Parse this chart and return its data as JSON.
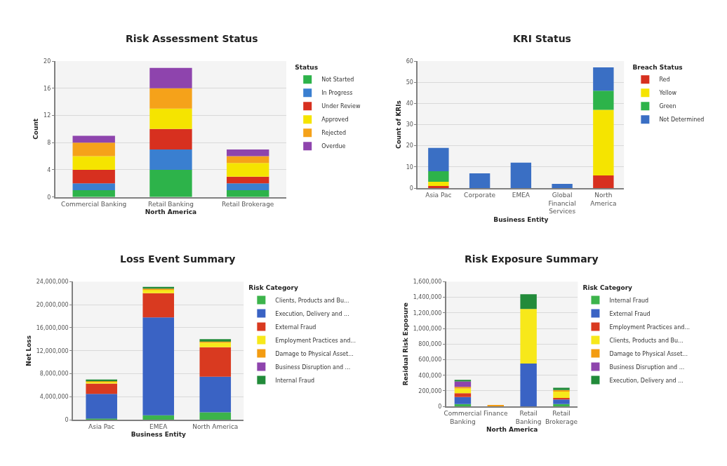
{
  "chart_data": [
    {
      "type": "bar",
      "stacked": true,
      "title": "Risk Assessment Status",
      "xlabel": "North America",
      "ylabel": "Count",
      "legend_title": "Status",
      "legend": "top right",
      "grid": "y",
      "categories": [
        "Commercial Banking",
        "Retail Banking",
        "Retail Brokerage"
      ],
      "ylim": [
        0,
        20
      ],
      "yticks": [
        0,
        4,
        8,
        12,
        16,
        20
      ],
      "series": [
        {
          "name": "Not Started",
          "color": "#2db34a",
          "values": [
            1,
            4,
            1
          ]
        },
        {
          "name": "In Progress",
          "color": "#3a7fd0",
          "values": [
            1,
            3,
            1
          ]
        },
        {
          "name": "Under Review",
          "color": "#d7301f",
          "values": [
            2,
            3,
            1
          ]
        },
        {
          "name": "Approved",
          "color": "#f5e400",
          "values": [
            2,
            3,
            2
          ]
        },
        {
          "name": "Rejected",
          "color": "#f5a21a",
          "values": [
            2,
            3,
            1
          ]
        },
        {
          "name": "Overdue",
          "color": "#8e44ad",
          "values": [
            1,
            3,
            1
          ]
        }
      ]
    },
    {
      "type": "bar",
      "stacked": true,
      "title": "KRI Status",
      "xlabel": "Business Entity",
      "ylabel": "Count of KRIs",
      "legend_title": "Breach Status",
      "legend": "top right",
      "grid": "y",
      "categories": [
        "Asia Pac",
        "Corporate",
        "EMEA",
        "Global Financial Services",
        "North America"
      ],
      "ylim": [
        0,
        60
      ],
      "yticks": [
        0,
        10,
        20,
        30,
        40,
        50,
        60
      ],
      "series": [
        {
          "name": "Red",
          "color": "#d7301f",
          "values": [
            1,
            0,
            0,
            0,
            6
          ]
        },
        {
          "name": "Yellow",
          "color": "#f5e400",
          "values": [
            2,
            0,
            0,
            0,
            31
          ]
        },
        {
          "name": "Green",
          "color": "#2db34a",
          "values": [
            5,
            0,
            0,
            0,
            9
          ]
        },
        {
          "name": "Not Determined",
          "color": "#3a6fc4",
          "values": [
            11,
            7,
            12,
            2,
            11
          ]
        }
      ]
    },
    {
      "type": "bar",
      "stacked": true,
      "title": "Loss Event Summary",
      "xlabel": "Business Entity",
      "ylabel": "Net Loss",
      "legend_title": "Risk Category",
      "legend": "top right",
      "grid": "y",
      "categories": [
        "Asia Pac",
        "EMEA",
        "North America"
      ],
      "ylim": [
        0,
        24000000
      ],
      "yticks": [
        {
          "value": 0,
          "label": "0"
        },
        {
          "value": 4000000,
          "label": "4,000,000"
        },
        {
          "value": 8000000,
          "label": "8,000,000"
        },
        {
          "value": 12000000,
          "label": "12,000,000"
        },
        {
          "value": 16000000,
          "label": "16,000,000"
        },
        {
          "value": 20000000,
          "label": "20,000,000"
        },
        {
          "value": 24000000,
          "label": "24,000,000"
        }
      ],
      "series": [
        {
          "name": "Clients, Products and Bu...",
          "color": "#3cb44b",
          "values": [
            200000,
            800000,
            1300000
          ]
        },
        {
          "name": "Execution, Delivery and ...",
          "color": "#3a63c4",
          "values": [
            4300000,
            17000000,
            6200000
          ]
        },
        {
          "name": "External Fraud",
          "color": "#d93a20",
          "values": [
            1800000,
            4200000,
            5100000
          ]
        },
        {
          "name": "Employment Practices and...",
          "color": "#f7e81a",
          "values": [
            300000,
            600000,
            800000
          ]
        },
        {
          "name": "Damage to Physical Asset...",
          "color": "#f39c12",
          "values": [
            100000,
            200000,
            200000
          ]
        },
        {
          "name": "Business Disruption and ...",
          "color": "#8e44ad",
          "values": [
            0,
            0,
            0
          ]
        },
        {
          "name": "Internal Fraud",
          "color": "#228b3a",
          "values": [
            300000,
            300000,
            400000
          ]
        }
      ]
    },
    {
      "type": "bar",
      "stacked": true,
      "title": "Risk Exposure Summary",
      "xlabel": "North America",
      "ylabel": "Residual Risk Exposure",
      "legend_title": "Risk Category",
      "legend": "top right",
      "grid": "y",
      "categories": [
        "Commercial Banking",
        "Finance",
        "Retail Banking",
        "Retail Brokerage"
      ],
      "ylim": [
        0,
        1600000
      ],
      "yticks": [
        {
          "value": 0,
          "label": "0"
        },
        {
          "value": 200000,
          "label": "200,000"
        },
        {
          "value": 400000,
          "label": "400,000"
        },
        {
          "value": 600000,
          "label": "600,000"
        },
        {
          "value": 800000,
          "label": "800,000"
        },
        {
          "value": 1000000,
          "label": "1,000,000"
        },
        {
          "value": 1200000,
          "label": "1,200,000"
        },
        {
          "value": 1400000,
          "label": "1,400,000"
        },
        {
          "value": 1600000,
          "label": "1,600,000"
        }
      ],
      "series": [
        {
          "name": "Internal Fraud",
          "color": "#3cb44b",
          "values": [
            30000,
            0,
            0,
            30000
          ]
        },
        {
          "name": "External Fraud",
          "color": "#3a63c4",
          "values": [
            90000,
            0,
            550000,
            60000
          ]
        },
        {
          "name": "Employment Practices and...",
          "color": "#d93a20",
          "values": [
            50000,
            0,
            0,
            20000
          ]
        },
        {
          "name": "Clients, Products and Bu...",
          "color": "#f7e81a",
          "values": [
            60000,
            0,
            700000,
            80000
          ]
        },
        {
          "name": "Damage to Physical Asset...",
          "color": "#f39c12",
          "values": [
            20000,
            20000,
            0,
            20000
          ]
        },
        {
          "name": "Business Disruption and ...",
          "color": "#8e44ad",
          "values": [
            70000,
            0,
            0,
            0
          ]
        },
        {
          "name": "Execution, Delivery and ...",
          "color": "#228b3a",
          "values": [
            20000,
            0,
            190000,
            30000
          ]
        }
      ]
    }
  ]
}
